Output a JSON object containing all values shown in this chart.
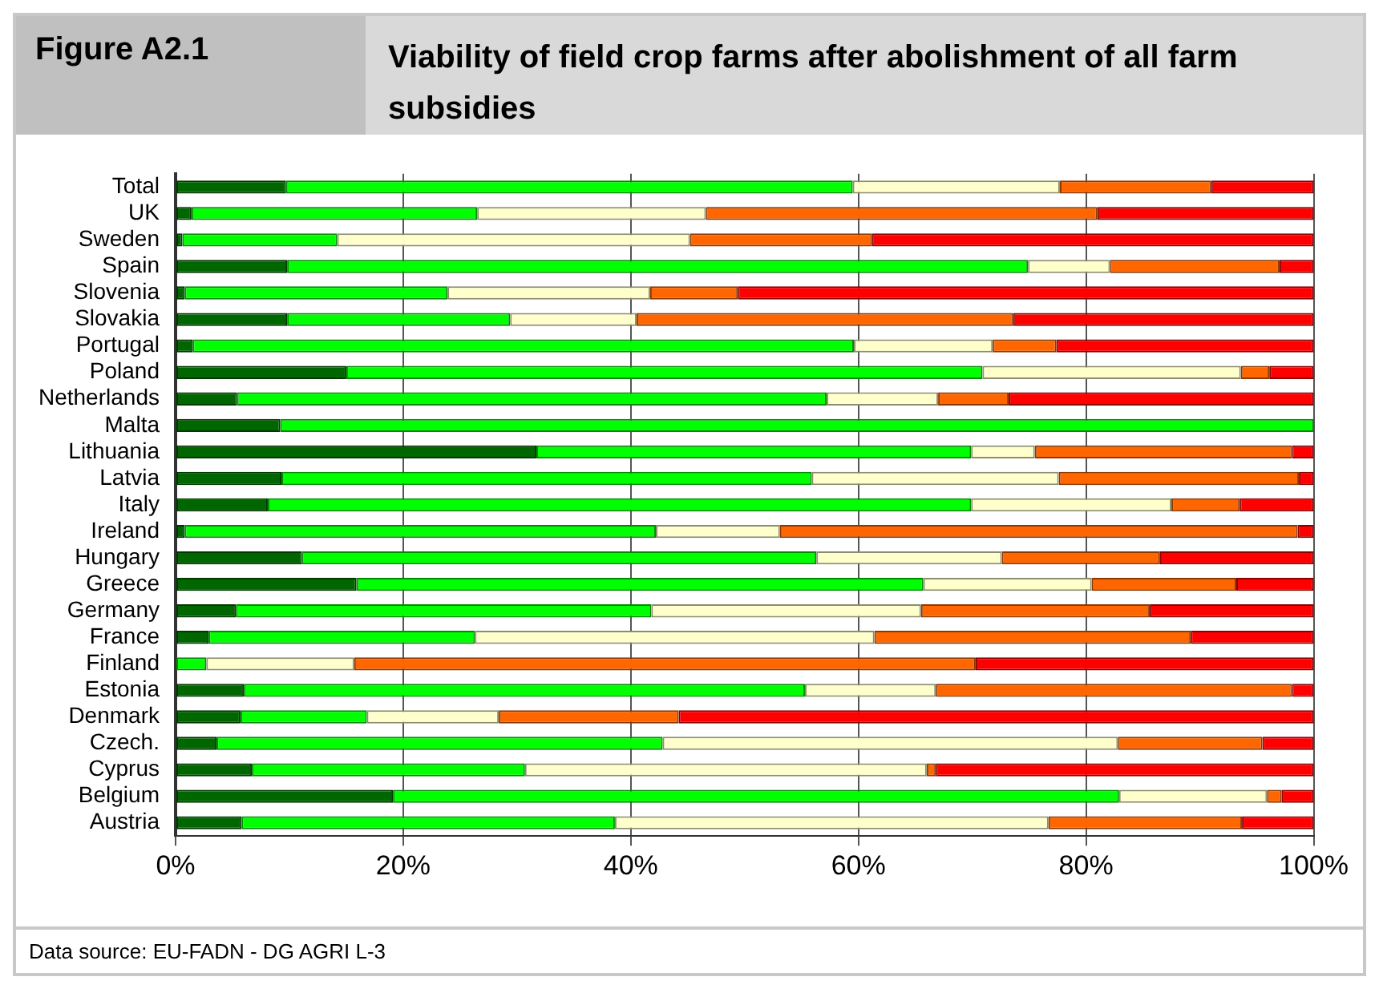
{
  "chart_data": {
    "type": "bar",
    "orientation": "horizontal",
    "stacked": true,
    "title": "Viability of field crop farms after abolishment of all farm subsidies",
    "annotations": [
      "Figure A2.1",
      "Data source: EU-FADN - DG AGRI L-3"
    ],
    "categories": [
      "Total",
      "UK",
      "Sweden",
      "Spain",
      "Slovenia",
      "Slovakia",
      "Portugal",
      "Poland",
      "Netherlands",
      "Malta",
      "Lithuania",
      "Latvia",
      "Italy",
      "Ireland",
      "Hungary",
      "Greece",
      "Germany",
      "France",
      "Finland",
      "Estonia",
      "Denmark",
      "Czech.",
      "Cyprus",
      "Belgium",
      "Austria"
    ],
    "series": [
      {
        "color": "#006600",
        "values": [
          9.7,
          1.4,
          0.6,
          9.8,
          0.8,
          9.8,
          1.5,
          15.0,
          5.4,
          9.2,
          31.7,
          9.3,
          8.1,
          0.8,
          11.1,
          15.9,
          5.3,
          2.9,
          0,
          6.0,
          5.7,
          3.6,
          6.7,
          19.1,
          5.8
        ]
      },
      {
        "color": "#00ff00",
        "values": [
          49.8,
          25.1,
          13.6,
          65.1,
          23.1,
          19.6,
          58.1,
          55.9,
          51.8,
          90.8,
          38.2,
          46.6,
          61.8,
          41.4,
          45.2,
          49.8,
          36.5,
          23.4,
          2.7,
          49.3,
          11.1,
          39.2,
          24.0,
          63.8,
          32.8
        ]
      },
      {
        "color": "#ffffcc",
        "values": [
          18.2,
          20.1,
          31.0,
          7.2,
          17.8,
          11.1,
          12.2,
          22.7,
          9.8,
          0,
          5.6,
          21.7,
          17.6,
          10.9,
          16.3,
          14.8,
          23.7,
          35.1,
          13.0,
          11.5,
          11.6,
          40.0,
          35.3,
          13.0,
          38.1
        ]
      },
      {
        "color": "#ff6600",
        "values": [
          13.3,
          34.4,
          16.0,
          14.9,
          7.7,
          33.1,
          5.6,
          2.5,
          6.2,
          0,
          22.6,
          21.1,
          6.0,
          45.5,
          13.9,
          12.7,
          20.1,
          27.8,
          54.6,
          31.3,
          15.8,
          12.7,
          0.8,
          1.3,
          17.0
        ]
      },
      {
        "color": "#ff0000",
        "values": [
          9.0,
          19.0,
          38.8,
          3.0,
          50.6,
          26.4,
          22.6,
          3.9,
          26.8,
          0,
          1.9,
          1.3,
          6.5,
          1.4,
          13.5,
          6.8,
          14.4,
          10.8,
          29.7,
          1.9,
          55.8,
          4.5,
          33.2,
          2.8,
          6.3
        ]
      }
    ],
    "xlim": [
      0,
      100
    ],
    "xticks": [
      {
        "value": 0,
        "label": "0%"
      },
      {
        "value": 20,
        "label": "20%"
      },
      {
        "value": 40,
        "label": "40%"
      },
      {
        "value": 60,
        "label": "60%"
      },
      {
        "value": 80,
        "label": "80%"
      },
      {
        "value": 100,
        "label": "100%"
      }
    ],
    "grid": "x",
    "legend": false
  }
}
